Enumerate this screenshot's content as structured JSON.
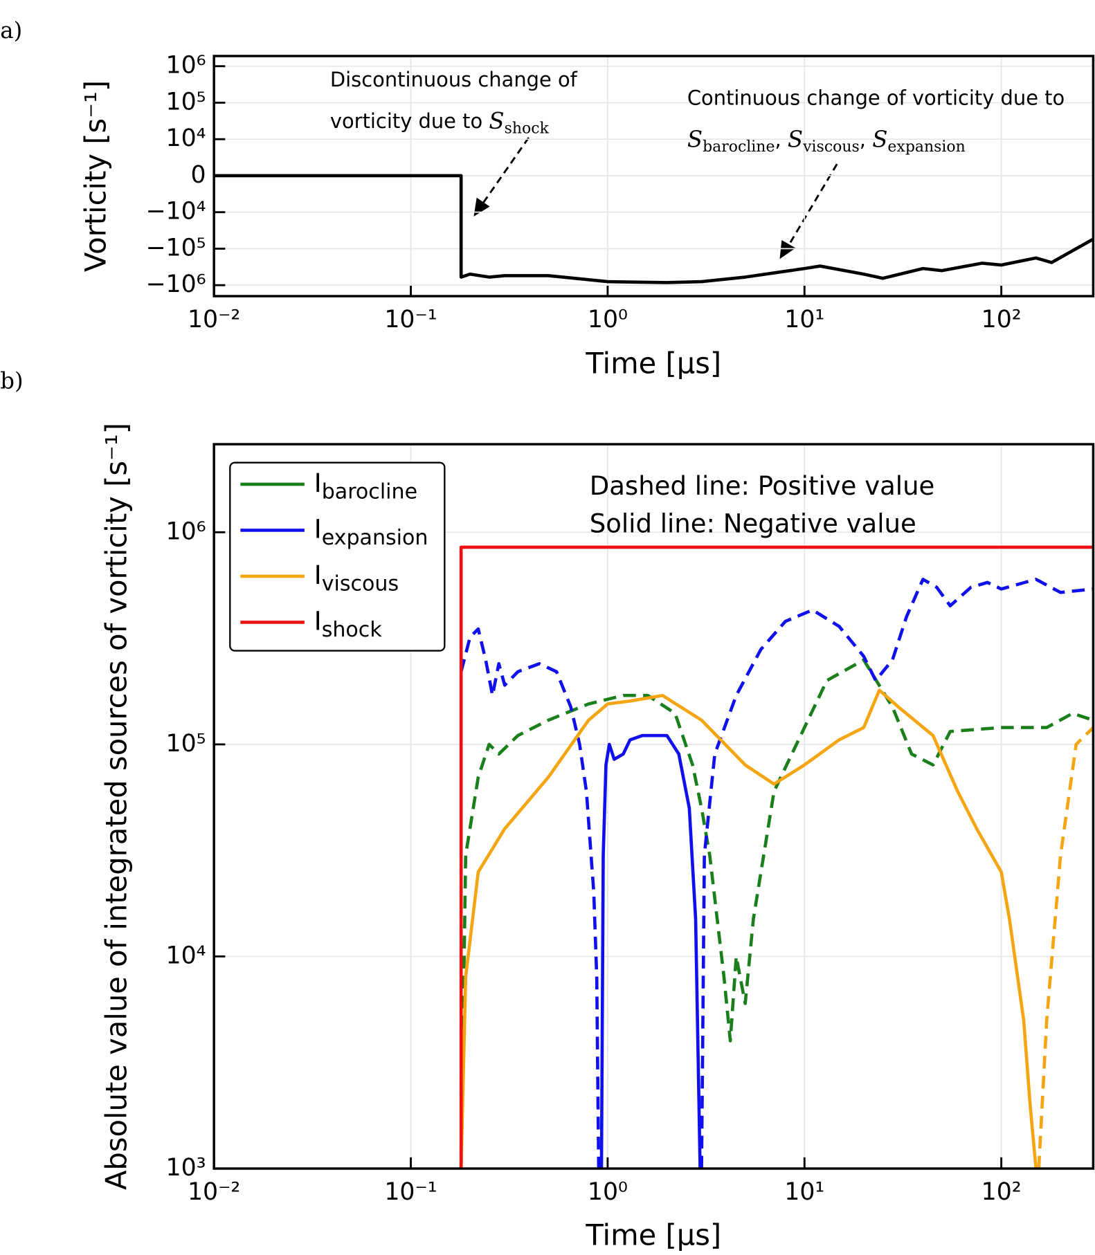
{
  "chart_data": [
    {
      "type": "line",
      "panel_label": "a)",
      "xlabel": "Time [μs]",
      "ylabel": "Vorticity [s⁻¹]",
      "xscale": "log",
      "yscale": "symlog",
      "linthresh": 10000,
      "grid": true,
      "xlim": [
        0.01,
        293
      ],
      "ylim": [
        -2000000,
        1900000
      ],
      "xticks": [
        {
          "value": 0.01,
          "label": "10⁻²"
        },
        {
          "value": 0.1,
          "label": "10⁻¹"
        },
        {
          "value": 1,
          "label": "10⁰"
        },
        {
          "value": 10,
          "label": "10¹"
        },
        {
          "value": 100,
          "label": "10²"
        }
      ],
      "yticks": [
        {
          "value": 1000000,
          "label": "10⁶"
        },
        {
          "value": 100000,
          "label": "10⁵"
        },
        {
          "value": 10000,
          "label": "10⁴"
        },
        0,
        {
          "value": -10000,
          "label": "−10⁴"
        },
        {
          "value": -100000,
          "label": "−10⁵"
        },
        {
          "value": -1000000,
          "label": "−10⁶"
        }
      ],
      "annotations": [
        {
          "lines": [
            "Discontinuous   change   of",
            "vorticity due to"
          ],
          "terms": [
            {
              "symbol": "S",
              "sub": "shock"
            }
          ]
        },
        {
          "lines": [
            "Continuous change of vorticity due to"
          ],
          "terms": [
            {
              "symbol": "S",
              "sub": "barocline"
            },
            {
              "symbol": "S",
              "sub": "viscous"
            },
            {
              "symbol": "S",
              "sub": "expansion"
            }
          ],
          "separator": ","
        }
      ],
      "series": [
        {
          "color": "#000000",
          "segments": [
            {
              "style": "solid",
              "x": [
                0.01,
                0.18,
                0.18,
                0.2,
                0.25,
                0.3,
                0.5,
                1,
                2,
                3,
                5,
                10,
                12,
                20,
                25,
                40,
                50,
                80,
                100,
                150,
                180,
                220,
                293
              ],
              "values": [
                0,
                0,
                -600000,
                -500000,
                -600000,
                -550000,
                -550000,
                -800000,
                -850000,
                -800000,
                -600000,
                -350000,
                -300000,
                -500000,
                -650000,
                -350000,
                -400000,
                -250000,
                -280000,
                -180000,
                -240000,
                -130000,
                -55000
              ]
            }
          ]
        }
      ]
    },
    {
      "type": "line",
      "panel_label": "b)",
      "xlabel": "Time [μs]",
      "ylabel": "Absolute value of integrated sources of vorticity [s⁻¹]",
      "xscale": "log",
      "yscale": "log",
      "grid": true,
      "legend": "upper left",
      "xlim": [
        0.01,
        293
      ],
      "ylim": [
        1000,
        2600000
      ],
      "xticks": [
        {
          "value": 0.01,
          "label": "10⁻²"
        },
        {
          "value": 0.1,
          "label": "10⁻¹"
        },
        {
          "value": 1,
          "label": "10⁰"
        },
        {
          "value": 10,
          "label": "10¹"
        },
        {
          "value": 100,
          "label": "10²"
        }
      ],
      "yticks": [
        {
          "value": 1000,
          "label": "10³"
        },
        {
          "value": 10000,
          "label": "10⁴"
        },
        {
          "value": 100000,
          "label": "10⁵"
        },
        {
          "value": 1000000,
          "label": "10⁶"
        }
      ],
      "notes": [
        "Dashed line: Positive value",
        "Solid line: Negative value"
      ],
      "series": [
        {
          "name": "I",
          "name_sub": "barocline",
          "color": "#1a7f1a",
          "segments": [
            {
              "style": "dashed",
              "x": [
                0.18,
                0.19,
                0.22,
                0.25,
                0.28,
                0.35,
                0.5,
                0.8,
                1.2,
                1.6,
                2.2,
                2.7,
                3.0,
                3.3,
                3.6,
                3.9,
                4.2,
                4.5,
                5,
                5.5,
                7,
                10,
                13,
                20,
                28,
                35,
                45,
                55,
                100,
                170,
                230,
                293
              ],
              "values": [
                1000,
                30000,
                70000,
                100000,
                90000,
                110000,
                130000,
                155000,
                170000,
                170000,
                140000,
                80000,
                50000,
                30000,
                15000,
                8000,
                4000,
                10000,
                6000,
                15000,
                60000,
                120000,
                200000,
                250000,
                150000,
                90000,
                80000,
                115000,
                120000,
                120000,
                140000,
                130000
              ]
            }
          ]
        },
        {
          "name": "I",
          "name_sub": "expansion",
          "color": "#1010ee",
          "segments": [
            {
              "style": "dashed",
              "x": [
                0.18,
                0.2,
                0.22,
                0.24,
                0.26,
                0.28,
                0.3,
                0.35,
                0.45,
                0.55,
                0.65,
                0.72,
                0.78,
                0.85,
                0.88,
                0.9
              ],
              "values": [
                220000,
                320000,
                350000,
                250000,
                170000,
                240000,
                190000,
                220000,
                240000,
                220000,
                150000,
                100000,
                60000,
                20000,
                8000,
                1000
              ]
            },
            {
              "style": "solid",
              "x": [
                0.93,
                0.95,
                0.98,
                1.02,
                1.08,
                1.2,
                1.3,
                1.5,
                2,
                2.3,
                2.6,
                2.8,
                2.95
              ],
              "values": [
                1000,
                30000,
                80000,
                100000,
                85000,
                90000,
                105000,
                110000,
                110000,
                90000,
                50000,
                15000,
                1000
              ]
            },
            {
              "style": "dashed",
              "x": [
                3.0,
                3.1,
                3.5,
                4.5,
                6,
                8,
                11,
                15,
                20,
                23,
                28,
                33,
                40,
                47,
                55,
                70,
                85,
                100,
                150,
                200,
                293
              ],
              "values": [
                1000,
                30000,
                90000,
                170000,
                280000,
                380000,
                430000,
                360000,
                260000,
                200000,
                250000,
                400000,
                600000,
                550000,
                450000,
                550000,
                580000,
                540000,
                600000,
                520000,
                540000
              ]
            }
          ]
        },
        {
          "name": "I",
          "name_sub": "viscous",
          "color": "#f5a511",
          "segments": [
            {
              "style": "solid",
              "x": [
                0.18,
                0.19,
                0.22,
                0.3,
                0.5,
                0.8,
                1,
                1.3,
                1.9,
                3,
                5,
                7,
                10,
                15,
                20,
                24,
                30,
                45,
                60,
                75,
                100,
                110,
                130,
                140,
                150
              ],
              "values": [
                1000,
                8000,
                25000,
                40000,
                70000,
                130000,
                155000,
                160000,
                170000,
                130000,
                80000,
                65000,
                80000,
                105000,
                120000,
                180000,
                150000,
                110000,
                60000,
                40000,
                25000,
                15000,
                5000,
                2000,
                1000
              ]
            },
            {
              "style": "dashed",
              "x": [
                155,
                170,
                200,
                240,
                293
              ],
              "values": [
                1000,
                5000,
                30000,
                100000,
                120000
              ]
            }
          ]
        },
        {
          "name": "I",
          "name_sub": "shock",
          "color": "#ee1111",
          "segments": [
            {
              "style": "solid",
              "x": [
                0.18,
                0.18,
                293
              ],
              "values": [
                1000,
                850000,
                850000
              ]
            }
          ]
        }
      ]
    }
  ]
}
